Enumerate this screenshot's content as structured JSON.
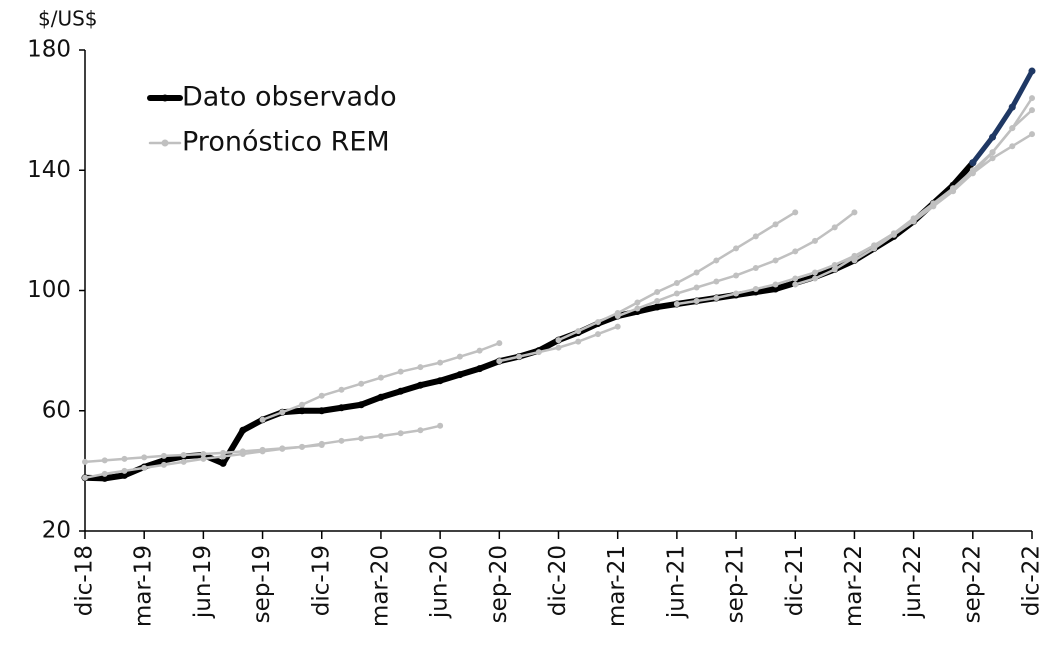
{
  "chart_data": {
    "type": "line",
    "ylabel": "$/US$",
    "categories": [
      "dic-18",
      null,
      null,
      "mar-19",
      null,
      null,
      "jun-19",
      null,
      null,
      "sep-19",
      null,
      null,
      "dic-19",
      null,
      null,
      "mar-20",
      null,
      null,
      "jun-20",
      null,
      null,
      "sep-20",
      null,
      null,
      "dic-20",
      null,
      null,
      "mar-21",
      null,
      null,
      "jun-21",
      null,
      null,
      "sep-21",
      null,
      null,
      "dic-21",
      null,
      null,
      "mar-22",
      null,
      null,
      "jun-22",
      null,
      null,
      "sep-22",
      null,
      null,
      "dic-22"
    ],
    "ylim": [
      20,
      180
    ],
    "yticks": [
      20,
      60,
      100,
      140,
      180
    ],
    "legend": "upper-left",
    "series": [
      {
        "name": "Dato observado",
        "color": "#000000",
        "width": 6,
        "values": [
          37.7,
          37.5,
          38.5,
          41.3,
          43.5,
          44.8,
          45.3,
          42.5,
          53.5,
          57,
          59.5,
          60,
          60,
          61,
          62,
          64.5,
          66.5,
          68.5,
          70,
          72,
          74,
          76.5,
          78,
          80,
          83.5,
          86,
          89,
          91.5,
          93,
          94.5,
          95.5,
          96.5,
          97.5,
          98.5,
          99.5,
          100.5,
          102.5,
          104.5,
          107,
          110,
          114,
          118,
          123,
          129,
          135,
          142.5,
          null,
          null,
          null
        ]
      },
      {
        "name": "Pronóstico REM",
        "color": "#c0c0c0",
        "width": 2.5,
        "values": [
          43,
          43.5,
          44,
          44.5,
          45,
          45.3,
          45.6,
          46,
          46.5,
          47,
          47.5,
          48,
          48.6,
          null,
          null,
          null,
          null,
          null,
          null,
          null,
          null,
          null,
          null,
          null,
          null,
          null,
          null,
          null,
          null,
          null,
          null,
          null,
          null,
          null,
          null,
          null,
          null,
          null,
          null,
          null,
          null,
          null,
          null,
          null,
          null,
          null,
          null,
          null,
          null
        ]
      },
      {
        "color": "#c0c0c0",
        "width": 2.5,
        "values": [
          37.7,
          39,
          40,
          41,
          42,
          43,
          44,
          44.8,
          45.6,
          46.5,
          47.3,
          48,
          49,
          50,
          50.8,
          51.6,
          52.5,
          53.5,
          55,
          null,
          null,
          null,
          null,
          null,
          null,
          null,
          null,
          null,
          null,
          null,
          null,
          null,
          null,
          null,
          null,
          null,
          null,
          null,
          null,
          null,
          null,
          null,
          null,
          null,
          null,
          null,
          null,
          null,
          null
        ]
      },
      {
        "color": "#c0c0c0",
        "width": 2.5,
        "values": [
          null,
          null,
          null,
          null,
          null,
          null,
          null,
          null,
          null,
          57,
          59.5,
          62,
          65,
          67,
          69,
          71,
          73,
          74.5,
          76,
          78,
          80,
          82.5,
          null,
          null,
          null,
          null,
          null,
          null,
          null,
          null,
          null,
          null,
          null,
          null,
          null,
          null,
          null,
          null,
          null,
          null,
          null,
          null,
          null,
          null,
          null,
          null,
          null,
          null,
          null
        ]
      },
      {
        "color": "#c0c0c0",
        "width": 2.5,
        "values": [
          null,
          null,
          null,
          null,
          null,
          null,
          null,
          null,
          null,
          null,
          null,
          null,
          null,
          null,
          null,
          null,
          null,
          null,
          null,
          null,
          null,
          76.5,
          78,
          79.5,
          81,
          83,
          85.5,
          88,
          null,
          null,
          null,
          null,
          null,
          null,
          null,
          null,
          null,
          null,
          null,
          null,
          null,
          null,
          null,
          null,
          null,
          null,
          null,
          null,
          null
        ]
      },
      {
        "color": "#c0c0c0",
        "width": 2.5,
        "values": [
          null,
          null,
          null,
          null,
          null,
          null,
          null,
          null,
          null,
          null,
          null,
          null,
          null,
          null,
          null,
          null,
          null,
          null,
          null,
          null,
          null,
          null,
          null,
          null,
          83.5,
          86.5,
          89.5,
          92.5,
          96,
          99.5,
          102.5,
          106,
          110,
          114,
          118,
          122,
          126,
          null,
          null,
          null,
          null,
          null,
          null,
          null,
          null,
          null,
          null,
          null,
          null
        ]
      },
      {
        "color": "#c0c0c0",
        "width": 2.5,
        "values": [
          null,
          null,
          null,
          null,
          null,
          null,
          null,
          null,
          null,
          null,
          null,
          null,
          null,
          null,
          null,
          null,
          null,
          null,
          null,
          null,
          null,
          null,
          null,
          null,
          null,
          null,
          null,
          91.5,
          94,
          96.5,
          99,
          101,
          103,
          105,
          107.5,
          110,
          113,
          116.5,
          121,
          126,
          null,
          null,
          null,
          null,
          null,
          null,
          null,
          null,
          null
        ]
      },
      {
        "color": "#c0c0c0",
        "width": 2.5,
        "values": [
          null,
          null,
          null,
          null,
          null,
          null,
          null,
          null,
          null,
          null,
          null,
          null,
          null,
          null,
          null,
          null,
          null,
          null,
          null,
          null,
          null,
          null,
          null,
          null,
          null,
          null,
          null,
          null,
          null,
          null,
          95.5,
          96.5,
          97.5,
          99,
          100.5,
          102,
          104,
          106,
          108.5,
          111.5,
          115,
          119,
          123,
          null,
          null,
          null,
          null,
          null,
          null
        ]
      },
      {
        "color": "#c0c0c0",
        "width": 2.5,
        "values": [
          null,
          null,
          null,
          null,
          null,
          null,
          null,
          null,
          null,
          null,
          null,
          null,
          null,
          null,
          null,
          null,
          null,
          null,
          null,
          null,
          null,
          null,
          null,
          null,
          null,
          null,
          null,
          null,
          null,
          null,
          null,
          null,
          null,
          null,
          null,
          null,
          102,
          104,
          107,
          111,
          115,
          119,
          124,
          129,
          134,
          139,
          144,
          148,
          152
        ]
      },
      {
        "color": "#c0c0c0",
        "width": 2.5,
        "values": [
          null,
          null,
          null,
          null,
          null,
          null,
          null,
          null,
          null,
          null,
          null,
          null,
          null,
          null,
          null,
          null,
          null,
          null,
          null,
          null,
          null,
          null,
          null,
          null,
          null,
          null,
          null,
          null,
          null,
          null,
          null,
          null,
          null,
          null,
          null,
          null,
          null,
          null,
          null,
          110,
          114,
          118.5,
          123,
          128,
          133,
          139,
          146,
          154,
          160
        ]
      },
      {
        "color": "#c0c0c0",
        "width": 2.5,
        "values": [
          null,
          null,
          null,
          null,
          null,
          null,
          null,
          null,
          null,
          null,
          null,
          null,
          null,
          null,
          null,
          null,
          null,
          null,
          null,
          null,
          null,
          null,
          null,
          null,
          null,
          null,
          null,
          null,
          null,
          null,
          null,
          null,
          null,
          null,
          null,
          null,
          null,
          null,
          null,
          null,
          null,
          null,
          123,
          128.5,
          134,
          140,
          146,
          154,
          164
        ]
      },
      {
        "color": "#1f3864",
        "width": 5,
        "values": [
          null,
          null,
          null,
          null,
          null,
          null,
          null,
          null,
          null,
          null,
          null,
          null,
          null,
          null,
          null,
          null,
          null,
          null,
          null,
          null,
          null,
          null,
          null,
          null,
          null,
          null,
          null,
          null,
          null,
          null,
          null,
          null,
          null,
          null,
          null,
          null,
          null,
          null,
          null,
          null,
          null,
          null,
          null,
          null,
          null,
          142.5,
          151,
          161,
          173
        ]
      }
    ]
  }
}
